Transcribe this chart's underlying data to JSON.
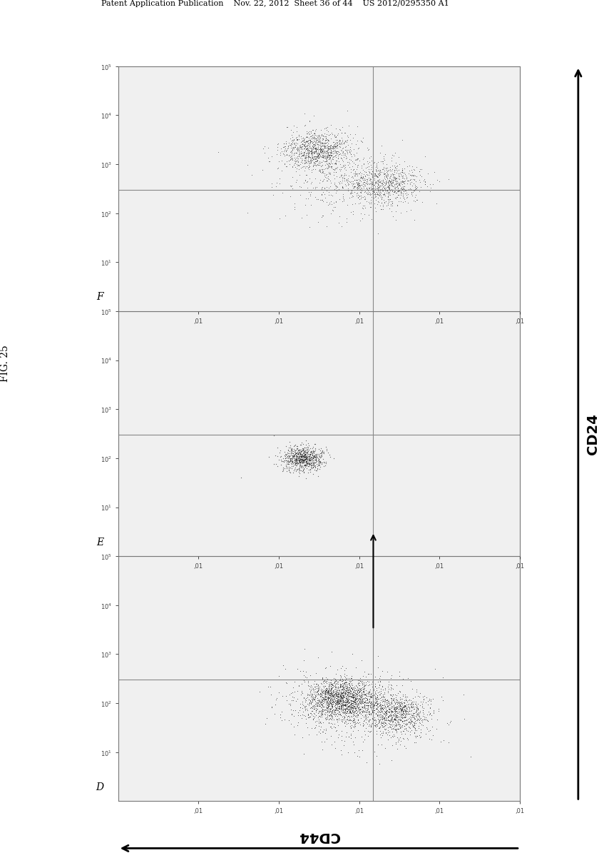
{
  "title": "FIG. 25",
  "patent_header": "Patent Application Publication    Nov. 22, 2012  Sheet 36 of 44    US 2012/0295350 A1",
  "xaxis_label": "CD44",
  "yaxis_label": "CD24",
  "panel_labels": [
    "D",
    "E",
    "F"
  ],
  "background_color": "#ffffff",
  "dot_color": "#1a1a1a",
  "seed_D": 42,
  "seed_E": 123,
  "seed_F": 7,
  "n_points_D": 3000,
  "n_points_E": 700,
  "n_points_F": 2200
}
